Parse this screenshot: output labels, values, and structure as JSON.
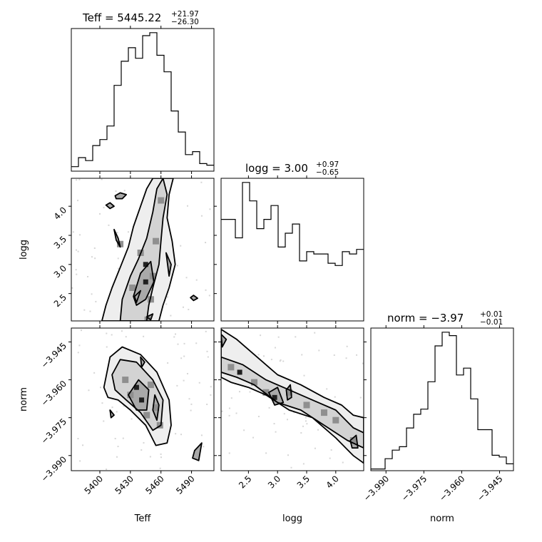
{
  "chart_data": [
    {
      "type": "histogram",
      "panel": "Teff",
      "title": {
        "label": "Teff",
        "value": "5445.22",
        "plus": "+21.97",
        "minus": "−26.30"
      },
      "xlim": [
        5372,
        5512
      ],
      "bin_edges_start": 5372,
      "bin_width": 7,
      "counts": [
        3,
        9,
        7,
        17,
        21,
        30,
        57,
        73,
        82,
        75,
        90,
        92,
        77,
        66,
        40,
        26,
        11,
        13,
        5,
        4
      ],
      "xticks": [
        5400,
        5430,
        5460,
        5490
      ],
      "xticklabels": [
        "5400",
        "5430",
        "5460",
        "5490"
      ]
    },
    {
      "type": "histogram",
      "panel": "logg",
      "title": {
        "label": "logg",
        "value": "3.00",
        "plus": "+0.97",
        "minus": "−0.65"
      },
      "xlim": [
        2.03,
        4.48
      ],
      "bin_edges_start": 2.03,
      "bin_width": 0.1225,
      "counts": [
        44,
        44,
        36,
        60,
        52,
        40,
        44,
        50,
        32,
        38,
        42,
        26,
        30,
        29,
        29,
        25,
        24,
        30,
        29,
        31
      ],
      "xticks": [
        2.5,
        3.0,
        3.5,
        4.0
      ],
      "xticklabels": [
        "2.5",
        "3.0",
        "3.5",
        "4.0"
      ]
    },
    {
      "type": "histogram",
      "panel": "norm",
      "title": {
        "label": "norm",
        "value": "−3.97",
        "plus": "+0.01",
        "minus": "−0.01"
      },
      "xlim": [
        -3.996,
        -3.9395
      ],
      "bin_edges_start": -3.996,
      "bin_width": 0.002825,
      "counts": [
        1,
        1,
        7,
        12,
        14,
        25,
        33,
        36,
        52,
        73,
        81,
        79,
        56,
        60,
        42,
        24,
        24,
        9,
        8,
        4
      ],
      "xticks": [
        -3.99,
        -3.975,
        -3.96,
        -3.945
      ],
      "xticklabels": [
        "−3.990",
        "−3.975",
        "−3.960",
        "−3.945"
      ]
    },
    {
      "type": "heatmap",
      "panel": "logg vs Teff",
      "x": "Teff",
      "y": "logg",
      "xlim": [
        5372,
        5512
      ],
      "ylim": [
        2.03,
        4.48
      ],
      "yticks": [
        2.5,
        3.0,
        3.5,
        4.0
      ],
      "yticklabels": [
        "2.5",
        "3.0",
        "3.5",
        "4.0"
      ],
      "contours": [
        [
          [
            5402,
            2.03
          ],
          [
            5406,
            2.3
          ],
          [
            5412,
            2.6
          ],
          [
            5420,
            2.95
          ],
          [
            5428,
            3.3
          ],
          [
            5433,
            3.65
          ],
          [
            5440,
            4.0
          ],
          [
            5446,
            4.3
          ],
          [
            5452,
            4.48
          ],
          [
            5472,
            4.48
          ],
          [
            5468,
            4.2
          ],
          [
            5466,
            3.8
          ],
          [
            5471,
            3.4
          ],
          [
            5474,
            3.0
          ],
          [
            5468,
            2.6
          ],
          [
            5462,
            2.3
          ],
          [
            5458,
            2.03
          ]
        ],
        [
          [
            5420,
            2.03
          ],
          [
            5422,
            2.4
          ],
          [
            5430,
            2.8
          ],
          [
            5438,
            3.1
          ],
          [
            5446,
            3.45
          ],
          [
            5452,
            3.9
          ],
          [
            5456,
            4.3
          ],
          [
            5462,
            4.48
          ],
          [
            5466,
            4.2
          ],
          [
            5462,
            3.8
          ],
          [
            5460,
            3.4
          ],
          [
            5458,
            3.0
          ],
          [
            5452,
            2.6
          ],
          [
            5448,
            2.3
          ],
          [
            5446,
            2.03
          ]
        ],
        [
          [
            5433,
            2.45
          ],
          [
            5440,
            2.85
          ],
          [
            5450,
            3.05
          ],
          [
            5453,
            2.7
          ],
          [
            5445,
            2.4
          ],
          [
            5436,
            2.3
          ]
        ],
        [
          [
            5415,
            4.18
          ],
          [
            5420,
            4.23
          ],
          [
            5426,
            4.2
          ],
          [
            5422,
            4.13
          ],
          [
            5416,
            4.13
          ]
        ],
        [
          [
            5410,
            4.06
          ],
          [
            5414,
            4.0
          ],
          [
            5410,
            3.96
          ],
          [
            5406,
            4.02
          ]
        ],
        [
          [
            5414,
            3.6
          ],
          [
            5418,
            3.45
          ],
          [
            5420,
            3.3
          ],
          [
            5416,
            3.42
          ]
        ],
        [
          [
            5434,
            2.45
          ],
          [
            5440,
            2.55
          ],
          [
            5436,
            2.35
          ]
        ],
        [
          [
            5446,
            2.1
          ],
          [
            5452,
            2.15
          ],
          [
            5450,
            2.05
          ]
        ],
        [
          [
            5492,
            2.47
          ],
          [
            5496,
            2.42
          ],
          [
            5492,
            2.38
          ],
          [
            5489,
            2.43
          ]
        ],
        [
          [
            5465,
            3.2
          ],
          [
            5470,
            3.0
          ],
          [
            5468,
            2.8
          ]
        ]
      ],
      "hot_spots": [
        [
          5445,
          3.0
        ],
        [
          5445,
          2.7
        ],
        [
          5450,
          2.4
        ],
        [
          5440,
          3.2
        ],
        [
          5455,
          3.4
        ],
        [
          5447,
          2.05
        ],
        [
          5420,
          3.35
        ],
        [
          5460,
          4.1
        ],
        [
          5432,
          2.6
        ],
        [
          5452,
          2.8
        ]
      ]
    },
    {
      "type": "heatmap",
      "panel": "norm vs Teff",
      "x": "Teff",
      "y": "norm",
      "xlim": [
        5372,
        5512
      ],
      "ylim": [
        -3.996,
        -3.9395
      ],
      "yticks": [
        -3.99,
        -3.975,
        -3.96,
        -3.945
      ],
      "yticklabels": [
        "−3.990",
        "−3.975",
        "−3.960",
        "−3.945"
      ],
      "contours": [
        [
          [
            5404,
            -3.963
          ],
          [
            5410,
            -3.951
          ],
          [
            5422,
            -3.947
          ],
          [
            5440,
            -3.95
          ],
          [
            5456,
            -3.957
          ],
          [
            5468,
            -3.968
          ],
          [
            5470,
            -3.978
          ],
          [
            5466,
            -3.985
          ],
          [
            5455,
            -3.986
          ],
          [
            5445,
            -3.978
          ],
          [
            5430,
            -3.972
          ],
          [
            5418,
            -3.968
          ],
          [
            5408,
            -3.967
          ]
        ],
        [
          [
            5412,
            -3.958
          ],
          [
            5420,
            -3.952
          ],
          [
            5436,
            -3.953
          ],
          [
            5452,
            -3.96
          ],
          [
            5462,
            -3.968
          ],
          [
            5460,
            -3.978
          ],
          [
            5452,
            -3.98
          ],
          [
            5440,
            -3.973
          ],
          [
            5426,
            -3.968
          ],
          [
            5415,
            -3.964
          ]
        ],
        [
          [
            5428,
            -3.966
          ],
          [
            5438,
            -3.96
          ],
          [
            5448,
            -3.964
          ],
          [
            5446,
            -3.972
          ],
          [
            5436,
            -3.972
          ]
        ],
        [
          [
            5454,
            -3.966
          ],
          [
            5458,
            -3.97
          ],
          [
            5456,
            -3.976
          ],
          [
            5452,
            -3.972
          ]
        ],
        [
          [
            5493,
            -3.988
          ],
          [
            5500,
            -3.985
          ],
          [
            5497,
            -3.992
          ],
          [
            5491,
            -3.991
          ]
        ],
        [
          [
            5440,
            -3.951
          ],
          [
            5444,
            -3.953
          ],
          [
            5441,
            -3.955
          ]
        ],
        [
          [
            5410,
            -3.972
          ],
          [
            5414,
            -3.974
          ],
          [
            5411,
            -3.975
          ]
        ]
      ],
      "hot_spots": [
        [
          5441,
          -3.968
        ],
        [
          5436,
          -3.963
        ],
        [
          5450,
          -3.962
        ],
        [
          5430,
          -3.966
        ],
        [
          5446,
          -3.974
        ],
        [
          5455,
          -3.971
        ],
        [
          5425,
          -3.96
        ],
        [
          5459,
          -3.978
        ]
      ]
    },
    {
      "type": "heatmap",
      "panel": "norm vs logg",
      "x": "logg",
      "y": "norm",
      "xlim": [
        2.03,
        4.48
      ],
      "ylim": [
        -3.996,
        -3.9395
      ],
      "contours": [
        [
          [
            2.03,
            -3.94
          ],
          [
            2.3,
            -3.944
          ],
          [
            2.6,
            -3.95
          ],
          [
            3.0,
            -3.958
          ],
          [
            3.4,
            -3.962
          ],
          [
            3.8,
            -3.967
          ],
          [
            4.1,
            -3.97
          ],
          [
            4.3,
            -3.974
          ],
          [
            4.48,
            -3.975
          ],
          [
            4.48,
            -3.993
          ],
          [
            4.3,
            -3.99
          ],
          [
            4.0,
            -3.983
          ],
          [
            3.6,
            -3.975
          ],
          [
            3.2,
            -3.972
          ],
          [
            2.8,
            -3.966
          ],
          [
            2.5,
            -3.963
          ],
          [
            2.2,
            -3.961
          ],
          [
            2.03,
            -3.959
          ]
        ],
        [
          [
            2.03,
            -3.951
          ],
          [
            2.4,
            -3.954
          ],
          [
            2.8,
            -3.96
          ],
          [
            3.2,
            -3.964
          ],
          [
            3.6,
            -3.968
          ],
          [
            4.0,
            -3.972
          ],
          [
            4.3,
            -3.979
          ],
          [
            4.48,
            -3.981
          ],
          [
            4.48,
            -3.987
          ],
          [
            4.2,
            -3.984
          ],
          [
            3.8,
            -3.978
          ],
          [
            3.4,
            -3.972
          ],
          [
            3.0,
            -3.969
          ],
          [
            2.6,
            -3.962
          ],
          [
            2.3,
            -3.959
          ],
          [
            2.03,
            -3.957
          ]
        ],
        [
          [
            2.85,
            -3.965
          ],
          [
            3.0,
            -3.963
          ],
          [
            3.1,
            -3.969
          ],
          [
            2.95,
            -3.97
          ]
        ],
        [
          [
            3.15,
            -3.964
          ],
          [
            3.22,
            -3.962
          ],
          [
            3.24,
            -3.967
          ],
          [
            3.17,
            -3.968
          ]
        ],
        [
          [
            4.25,
            -3.984
          ],
          [
            4.35,
            -3.982
          ],
          [
            4.38,
            -3.987
          ],
          [
            4.28,
            -3.987
          ]
        ],
        [
          [
            2.03,
            -3.942
          ],
          [
            2.12,
            -3.944
          ],
          [
            2.05,
            -3.947
          ]
        ]
      ],
      "hot_spots": [
        [
          2.35,
          -3.957
        ],
        [
          2.95,
          -3.967
        ],
        [
          3.2,
          -3.965
        ],
        [
          2.2,
          -3.955
        ],
        [
          2.6,
          -3.961
        ],
        [
          3.5,
          -3.97
        ],
        [
          4.0,
          -3.976
        ],
        [
          4.3,
          -3.984
        ],
        [
          2.8,
          -3.965
        ],
        [
          3.8,
          -3.973
        ]
      ]
    }
  ],
  "labels": {
    "x_teff": "Teff",
    "x_logg": "logg",
    "x_norm": "norm",
    "y_logg": "logg",
    "y_norm": "norm"
  }
}
